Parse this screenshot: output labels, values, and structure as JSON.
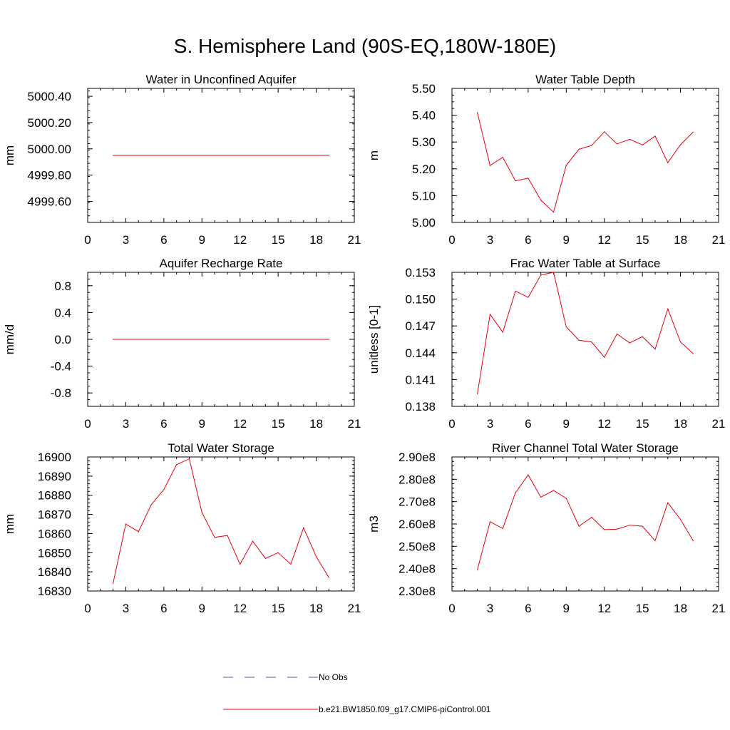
{
  "figure_title": "S. Hemisphere Land (90S-EQ,180W-180E)",
  "colors": {
    "model_line": "#e8000b",
    "obs_line": "#4b5fa8",
    "axis": "#000000"
  },
  "legend": {
    "obs_label": "No Obs",
    "model_label": "b.e21.BW1850.f09_g17.CMIP6-piControl.001"
  },
  "chart_data": [
    {
      "type": "line",
      "title": "Water in Unconfined Aquifer",
      "ylabel": "mm",
      "xlim": [
        0,
        21
      ],
      "xticks": [
        0,
        3,
        6,
        9,
        12,
        15,
        18,
        21
      ],
      "xticklabels": [
        "0",
        "3",
        "6",
        "9",
        "12",
        "15",
        "18",
        "21"
      ],
      "ylim": [
        4999.44,
        5000.46
      ],
      "yticks": [
        4999.6,
        4999.8,
        5000.0,
        5000.2,
        5000.4
      ],
      "yticklabels": [
        "4999.60",
        "4999.80",
        "5000.00",
        "5000.20",
        "5000.40"
      ],
      "yminor": 0.05,
      "series": [
        {
          "name": "b.e21.BW1850.f09_g17.CMIP6-piControl.001",
          "x": [
            2,
            3,
            4,
            5,
            6,
            7,
            8,
            9,
            10,
            11,
            12,
            13,
            14,
            15,
            16,
            17,
            18,
            19
          ],
          "values": [
            4999.95,
            4999.95,
            4999.95,
            4999.95,
            4999.95,
            4999.95,
            4999.95,
            4999.95,
            4999.95,
            4999.95,
            4999.95,
            4999.95,
            4999.95,
            4999.95,
            4999.95,
            4999.95,
            4999.95,
            4999.95
          ]
        }
      ]
    },
    {
      "type": "line",
      "title": "Water Table Depth",
      "ylabel": "m",
      "xlim": [
        0,
        21
      ],
      "xticks": [
        0,
        3,
        6,
        9,
        12,
        15,
        18,
        21
      ],
      "xticklabels": [
        "0",
        "3",
        "6",
        "9",
        "12",
        "15",
        "18",
        "21"
      ],
      "ylim": [
        5.0,
        5.5
      ],
      "yticks": [
        5.0,
        5.1,
        5.2,
        5.3,
        5.4,
        5.5
      ],
      "yticklabels": [
        "5.00",
        "5.10",
        "5.20",
        "5.30",
        "5.40",
        "5.50"
      ],
      "yminor": 0.025,
      "series": [
        {
          "name": "b.e21.BW1850.f09_g17.CMIP6-piControl.001",
          "x": [
            2,
            3,
            4,
            5,
            6,
            7,
            8,
            9,
            10,
            11,
            12,
            13,
            14,
            15,
            16,
            17,
            18,
            19
          ],
          "values": [
            5.41,
            5.212,
            5.243,
            5.155,
            5.165,
            5.083,
            5.038,
            5.213,
            5.273,
            5.287,
            5.338,
            5.293,
            5.31,
            5.289,
            5.322,
            5.223,
            5.29,
            5.337
          ]
        }
      ]
    },
    {
      "type": "line",
      "title": "Aquifer Recharge Rate",
      "ylabel": "mm/d",
      "xlim": [
        0,
        21
      ],
      "xticks": [
        0,
        3,
        6,
        9,
        12,
        15,
        18,
        21
      ],
      "xticklabels": [
        "0",
        "3",
        "6",
        "9",
        "12",
        "15",
        "18",
        "21"
      ],
      "ylim": [
        -1.0,
        1.0
      ],
      "yticks": [
        -0.8,
        -0.4,
        0.0,
        0.4,
        0.8
      ],
      "yticklabels": [
        "-0.8",
        "-0.4",
        "0.0",
        "0.4",
        "0.8"
      ],
      "yminor": 0.1,
      "series": [
        {
          "name": "b.e21.BW1850.f09_g17.CMIP6-piControl.001",
          "x": [
            2,
            3,
            4,
            5,
            6,
            7,
            8,
            9,
            10,
            11,
            12,
            13,
            14,
            15,
            16,
            17,
            18,
            19
          ],
          "values": [
            0,
            0,
            0,
            0,
            0,
            0,
            0,
            0,
            0,
            0,
            0,
            0,
            0,
            0,
            0,
            0,
            0,
            0
          ]
        }
      ]
    },
    {
      "type": "line",
      "title": "Frac Water Table at Surface",
      "ylabel": "unitless [0-1]",
      "xlim": [
        0,
        21
      ],
      "xticks": [
        0,
        3,
        6,
        9,
        12,
        15,
        18,
        21
      ],
      "xticklabels": [
        "0",
        "3",
        "6",
        "9",
        "12",
        "15",
        "18",
        "21"
      ],
      "ylim": [
        0.138,
        0.153
      ],
      "yticks": [
        0.138,
        0.141,
        0.144,
        0.147,
        0.15,
        0.153
      ],
      "yticklabels": [
        "0.138",
        "0.141",
        "0.144",
        "0.147",
        "0.150",
        "0.153"
      ],
      "yminor": 0.00075,
      "series": [
        {
          "name": "b.e21.BW1850.f09_g17.CMIP6-piControl.001",
          "x": [
            2,
            3,
            4,
            5,
            6,
            7,
            8,
            9,
            10,
            11,
            12,
            13,
            14,
            15,
            16,
            17,
            18,
            19
          ],
          "values": [
            0.1394,
            0.1483,
            0.1463,
            0.1509,
            0.1502,
            0.1527,
            0.153,
            0.1469,
            0.1454,
            0.1452,
            0.1435,
            0.1461,
            0.1451,
            0.1458,
            0.1444,
            0.1489,
            0.1452,
            0.1439
          ]
        }
      ]
    },
    {
      "type": "line",
      "title": "Total Water Storage",
      "ylabel": "mm",
      "xlim": [
        0,
        21
      ],
      "xticks": [
        0,
        3,
        6,
        9,
        12,
        15,
        18,
        21
      ],
      "xticklabels": [
        "0",
        "3",
        "6",
        "9",
        "12",
        "15",
        "18",
        "21"
      ],
      "ylim": [
        16830,
        16900
      ],
      "yticks": [
        16830,
        16840,
        16850,
        16860,
        16870,
        16880,
        16890,
        16900
      ],
      "yticklabels": [
        "16830",
        "16840",
        "16850",
        "16860",
        "16870",
        "16880",
        "16890",
        "16900"
      ],
      "yminor": 2,
      "series": [
        {
          "name": "b.e21.BW1850.f09_g17.CMIP6-piControl.001",
          "x": [
            2,
            3,
            4,
            5,
            6,
            7,
            8,
            9,
            10,
            11,
            12,
            13,
            14,
            15,
            16,
            17,
            18,
            19
          ],
          "values": [
            16834,
            16865,
            16861,
            16875,
            16883,
            16896,
            16899,
            16871,
            16858,
            16859,
            16844,
            16856,
            16847,
            16850,
            16844,
            16863,
            16848,
            16837
          ]
        }
      ]
    },
    {
      "type": "line",
      "title": "River Channel Total Water Storage",
      "ylabel": "m3",
      "xlim": [
        0,
        21
      ],
      "xticks": [
        0,
        3,
        6,
        9,
        12,
        15,
        18,
        21
      ],
      "xticklabels": [
        "0",
        "3",
        "6",
        "9",
        "12",
        "15",
        "18",
        "21"
      ],
      "ylim": [
        230000000.0,
        290000000.0
      ],
      "yticks": [
        230000000.0,
        240000000.0,
        250000000.0,
        260000000.0,
        270000000.0,
        280000000.0,
        290000000.0
      ],
      "yticklabels": [
        "2.30e8",
        "2.40e8",
        "2.50e8",
        "2.60e8",
        "2.70e8",
        "2.80e8",
        "2.90e8"
      ],
      "yminor": 2000000.0,
      "series": [
        {
          "name": "b.e21.BW1850.f09_g17.CMIP6-piControl.001",
          "x": [
            2,
            3,
            4,
            5,
            6,
            7,
            8,
            9,
            10,
            11,
            12,
            13,
            14,
            15,
            16,
            17,
            18,
            19
          ],
          "values": [
            239500000.0,
            261000000.0,
            258000000.0,
            274000000.0,
            282000000.0,
            272000000.0,
            275000000.0,
            271500000.0,
            259000000.0,
            263000000.0,
            257500000.0,
            257700000.0,
            259500000.0,
            259000000.0,
            252500000.0,
            269500000.0,
            262000000.0,
            252500000.0
          ]
        }
      ]
    }
  ]
}
